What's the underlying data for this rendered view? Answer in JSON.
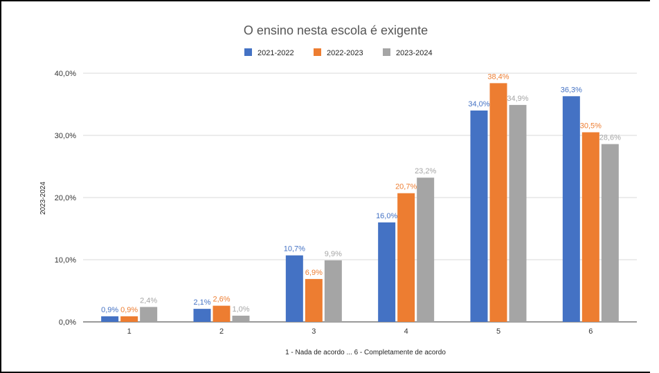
{
  "chart_data": {
    "type": "bar",
    "title": "O ensino nesta escola é exigente",
    "xlabel": "1 - Nada de acordo ... 6 - Completamente de acordo",
    "ylabel": "2023-2024",
    "categories": [
      "1",
      "2",
      "3",
      "4",
      "5",
      "6"
    ],
    "ylim": [
      0,
      40
    ],
    "yticks": [
      "0,0%",
      "10,0%",
      "20,0%",
      "30,0%",
      "40,0%"
    ],
    "grid": true,
    "legend_position": "top",
    "series": [
      {
        "name": "2021-2022",
        "color": "#4472c4",
        "values": [
          0.9,
          2.1,
          10.7,
          16.0,
          34.0,
          36.3
        ],
        "labels": [
          "0,9%",
          "2,1%",
          "10,7%",
          "16,0%",
          "34,0%",
          "36,3%"
        ]
      },
      {
        "name": "2022-2023",
        "color": "#ed7d31",
        "values": [
          0.9,
          2.6,
          6.9,
          20.7,
          38.4,
          30.5
        ],
        "labels": [
          "0,9%",
          "2,6%",
          "6,9%",
          "20,7%",
          "38,4%",
          "30,5%"
        ]
      },
      {
        "name": "2023-2024",
        "color": "#a5a5a5",
        "values": [
          2.4,
          1.0,
          9.9,
          23.2,
          34.9,
          28.6
        ],
        "labels": [
          "2,4%",
          "1,0%",
          "9,9%",
          "23,2%",
          "34,9%",
          "28,6%"
        ]
      }
    ]
  }
}
